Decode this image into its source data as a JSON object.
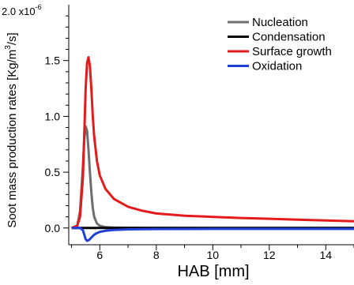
{
  "chart_data": {
    "type": "line",
    "title": "",
    "xlabel": "HAB [mm]",
    "ylabel_parts": [
      "Soot mass production rates [Kg/m",
      "3",
      "/s]"
    ],
    "y_multiplier_base": "2.0 x10",
    "y_multiplier_exp": "-6",
    "xlim": [
      4.9,
      15
    ],
    "ylim": [
      -0.15,
      2.0
    ],
    "x_ticks": [
      6,
      8,
      10,
      12,
      14
    ],
    "x_tick_labels": [
      "6",
      "8",
      "10",
      "12",
      "14"
    ],
    "y_ticks": [
      0.0,
      0.5,
      1.0,
      1.5
    ],
    "y_tick_labels": [
      "0.0",
      "0.5",
      "1.0",
      "1.5"
    ],
    "legend_position": "top-right",
    "series": [
      {
        "name": "Nucleation",
        "color": "#6e6e6e",
        "x": [
          5.0,
          5.2,
          5.3,
          5.4,
          5.45,
          5.5,
          5.55,
          5.6,
          5.65,
          5.7,
          5.75,
          5.8,
          5.9,
          6.0,
          6.2,
          6.5,
          7.0,
          8.0,
          10.0,
          12.0,
          15.0
        ],
        "y": [
          0.0,
          0.02,
          0.15,
          0.55,
          0.8,
          0.91,
          0.87,
          0.7,
          0.5,
          0.32,
          0.18,
          0.1,
          0.04,
          0.02,
          0.008,
          0.004,
          0.002,
          0.001,
          0.0,
          0.0,
          0.0
        ]
      },
      {
        "name": "Condensation",
        "color": "#000000",
        "x": [
          5.0,
          6.0,
          8.0,
          10.0,
          12.0,
          15.0
        ],
        "y": [
          0.0,
          0.0,
          0.0,
          0.0,
          0.0,
          0.0
        ]
      },
      {
        "name": "Surface growth",
        "color": "#e41a1c",
        "x": [
          5.0,
          5.2,
          5.3,
          5.4,
          5.45,
          5.5,
          5.55,
          5.6,
          5.65,
          5.7,
          5.75,
          5.8,
          5.9,
          6.0,
          6.2,
          6.5,
          7.0,
          7.5,
          8.0,
          9.0,
          10.0,
          11.0,
          12.0,
          13.0,
          14.0,
          15.0
        ],
        "y": [
          0.0,
          0.02,
          0.1,
          0.45,
          0.85,
          1.25,
          1.48,
          1.53,
          1.45,
          1.25,
          1.0,
          0.82,
          0.6,
          0.47,
          0.35,
          0.26,
          0.19,
          0.155,
          0.13,
          0.11,
          0.1,
          0.09,
          0.083,
          0.075,
          0.068,
          0.06
        ]
      },
      {
        "name": "Oxidation",
        "color": "#1f3fd6",
        "x": [
          5.0,
          5.3,
          5.4,
          5.45,
          5.5,
          5.55,
          5.6,
          5.65,
          5.7,
          5.8,
          5.9,
          6.0,
          6.2,
          6.5,
          7.0,
          8.0,
          10.0,
          12.0,
          15.0
        ],
        "y": [
          0.0,
          0.0,
          -0.02,
          -0.06,
          -0.1,
          -0.115,
          -0.11,
          -0.1,
          -0.085,
          -0.06,
          -0.045,
          -0.035,
          -0.025,
          -0.018,
          -0.012,
          -0.009,
          -0.008,
          -0.008,
          -0.008
        ]
      }
    ]
  }
}
